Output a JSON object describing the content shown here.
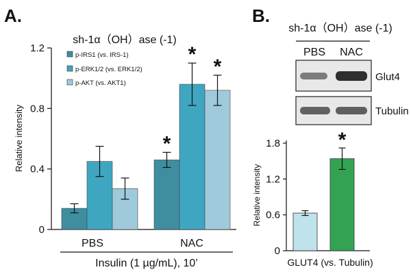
{
  "panels": {
    "a_label": "A.",
    "b_label": "B."
  },
  "colors": {
    "series1": "#3f8ea0",
    "series2": "#3fa6c2",
    "series3": "#9fcadb",
    "pbs_bar": "#bfe3ea",
    "nac_bar": "#33a353"
  },
  "chart_data": [
    {
      "id": "panel-a",
      "type": "bar",
      "title": "sh-1α（OH）ase (-1)",
      "ylabel": "Relative intensity",
      "xlabel": "Insulin (1 µg/mL), 10’",
      "ylim": [
        0,
        1.2
      ],
      "yticks": [
        0,
        0.4,
        0.8,
        1.2
      ],
      "ytick_labels": [
        "0",
        "0.4",
        "0.8",
        "1.2"
      ],
      "categories": [
        "PBS",
        "NAC"
      ],
      "series": [
        {
          "name": "p-IRS1 (vs. IRS-1)",
          "values": [
            0.14,
            0.46
          ],
          "errors": [
            0.03,
            0.05
          ]
        },
        {
          "name": "p-ERK1/2 (vs. ERK1/2)",
          "values": [
            0.45,
            0.96
          ],
          "errors": [
            0.1,
            0.14
          ]
        },
        {
          "name": "p-AKT (vs. AKT1)",
          "values": [
            0.27,
            0.92
          ],
          "errors": [
            0.07,
            0.1
          ]
        }
      ],
      "significance": [
        {
          "category": "NAC",
          "series": 0,
          "mark": "*"
        },
        {
          "category": "NAC",
          "series": 1,
          "mark": "*"
        },
        {
          "category": "NAC",
          "series": 2,
          "mark": "*"
        }
      ],
      "legend_position": "top-left"
    },
    {
      "id": "panel-b",
      "type": "bar",
      "title": "sh-1α（OH）ase (-1)",
      "ylabel": "Relative intensity",
      "xlabel": "GLUT4 (vs. Tubulin)",
      "ylim": [
        0,
        1.8
      ],
      "yticks": [
        0,
        0.6,
        1.2,
        1.8
      ],
      "ytick_labels": [
        "0",
        "0.6",
        "1.2",
        "1.8"
      ],
      "categories": [
        "PBS",
        "NAC"
      ],
      "values": [
        0.63,
        1.54
      ],
      "errors": [
        0.04,
        0.18
      ],
      "significance": [
        {
          "category": "NAC",
          "mark": "*"
        }
      ],
      "blot": {
        "lane_labels": [
          "PBS",
          "NAC"
        ],
        "rows": [
          {
            "label": "Glut4",
            "intensity": [
              0.45,
              0.9
            ]
          },
          {
            "label": "Tubulin",
            "intensity": [
              0.6,
              0.62
            ]
          }
        ]
      }
    }
  ]
}
